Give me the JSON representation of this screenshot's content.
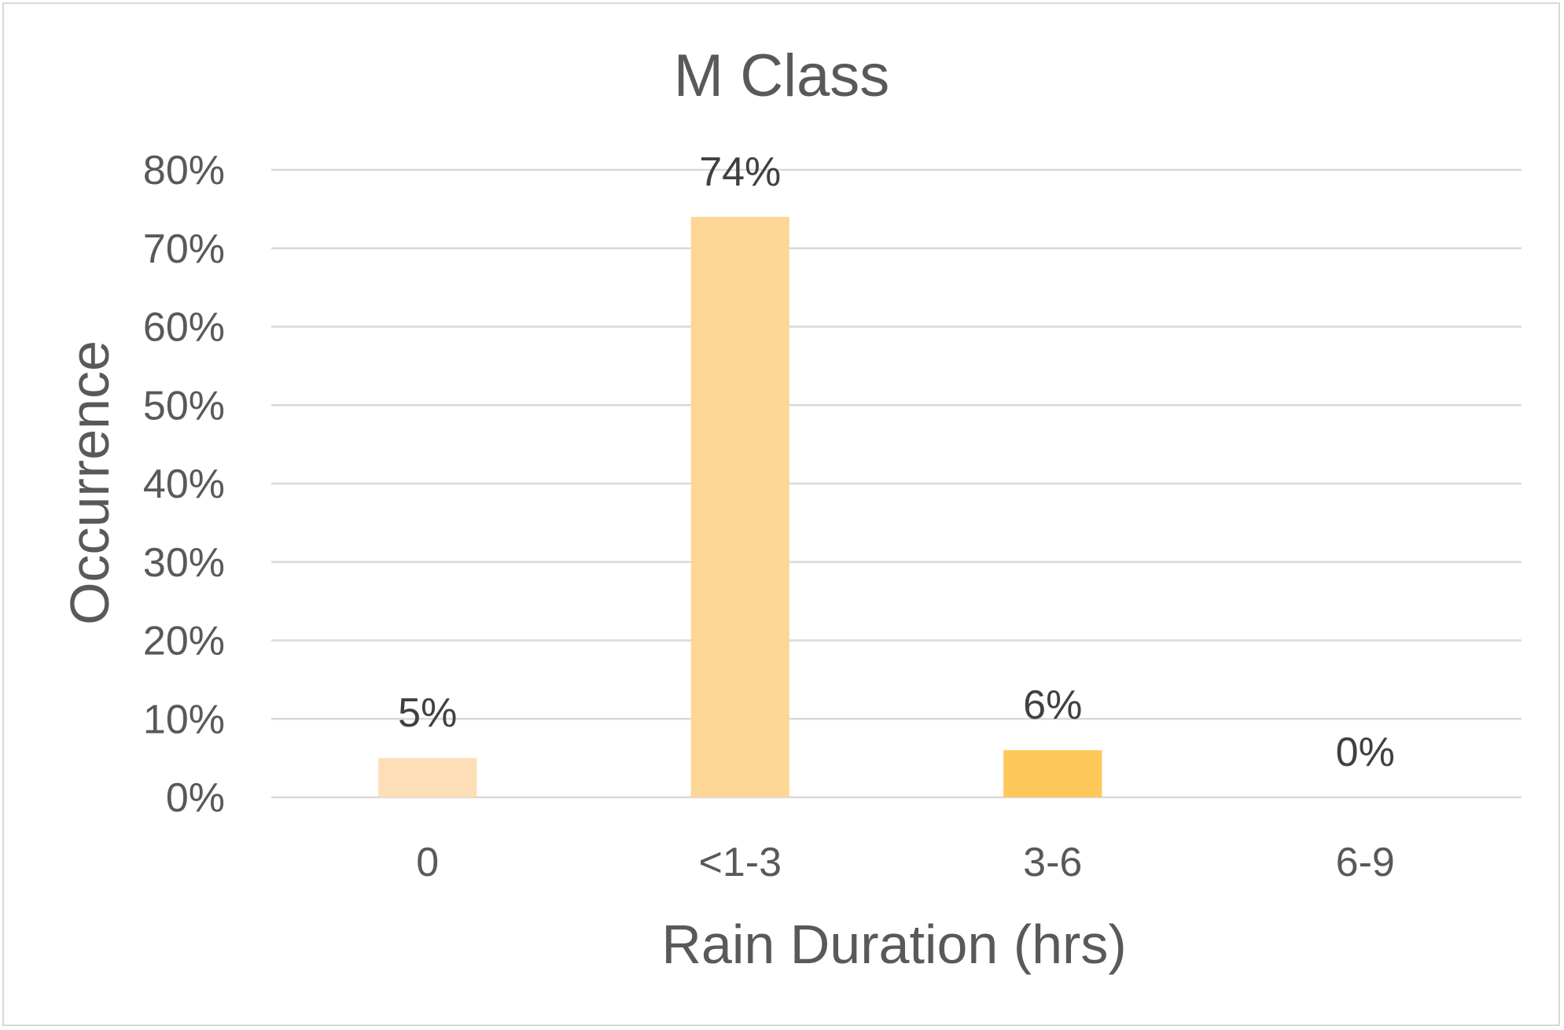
{
  "chart_data": {
    "type": "bar",
    "title": "M Class",
    "xlabel": "Rain Duration (hrs)",
    "ylabel": "Occurrence",
    "categories": [
      "0",
      "<1-3",
      "3-6",
      "6-9"
    ],
    "values": [
      5,
      74,
      6,
      0
    ],
    "data_labels": [
      "5%",
      "74%",
      "6%",
      "0%"
    ],
    "bar_colors": [
      "#FDDEB7",
      "#FDD796",
      "#FEC75A",
      "#FEC75A"
    ],
    "ylim": [
      0,
      80
    ],
    "yticks": [
      0,
      10,
      20,
      30,
      40,
      50,
      60,
      70,
      80
    ],
    "ytick_labels": [
      "0%",
      "10%",
      "20%",
      "30%",
      "40%",
      "50%",
      "60%",
      "70%",
      "80%"
    ],
    "grid": true,
    "legend": "none"
  }
}
